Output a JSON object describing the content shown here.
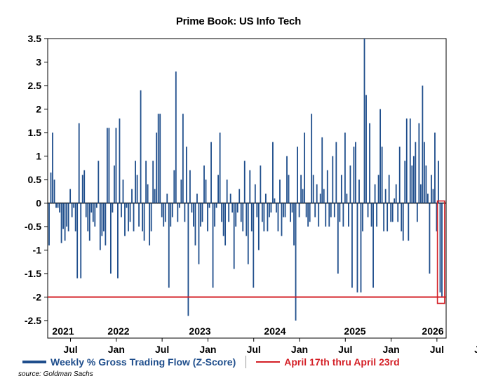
{
  "chart_data": {
    "type": "bar",
    "title": "Prime Book: US Info Tech",
    "xlabel": "",
    "ylabel": "",
    "ylim": [
      -2.75,
      3.5
    ],
    "y_ticks": [
      "3.5",
      "3",
      "2.5",
      "2",
      "1.5",
      "1",
      "0.5",
      "0",
      "-0.5",
      "-1",
      "-1.5",
      "-2",
      "-2.5"
    ],
    "x_month_ticks": [
      "Jul",
      "Jan",
      "Jul",
      "Jan",
      "Jul",
      "Jan",
      "Jul",
      "Jan",
      "Jul",
      "Jan"
    ],
    "x_year_labels": [
      "2021",
      "2022",
      "2023",
      "2024",
      "2025",
      "2026"
    ],
    "grid": false,
    "reference_line": {
      "value": -2.0,
      "name": "April 17th thru April 23rd",
      "color": "#d42027"
    },
    "highlight_last_n_weeks": 2,
    "series": [
      {
        "name": "Weekly % Gross Trading Flow (Z-Score)",
        "color": "#1f4e8c",
        "values": [
          -0.9,
          0.65,
          1.5,
          0.5,
          -0.1,
          -0.1,
          -0.2,
          -0.85,
          -0.55,
          -0.8,
          -0.5,
          -0.6,
          0.3,
          -0.3,
          -0.1,
          -0.6,
          -1.6,
          1.7,
          -1.6,
          0.6,
          0.7,
          -0.3,
          -0.6,
          -0.8,
          -0.2,
          -0.4,
          -0.5,
          -0.1,
          0.9,
          -1.0,
          -0.7,
          -0.6,
          -0.9,
          1.6,
          1.6,
          -1.5,
          -0.2,
          0.8,
          1.6,
          -1.6,
          1.8,
          -0.3,
          0.5,
          -0.7,
          -0.1,
          -0.6,
          -0.4,
          0.3,
          -0.6,
          0.9,
          0.6,
          -0.5,
          2.4,
          -0.6,
          -0.8,
          0.9,
          0.4,
          -0.9,
          -0.6,
          0.9,
          0.3,
          1.5,
          1.9,
          1.9,
          -0.3,
          -0.5,
          -0.4,
          0.2,
          -1.8,
          -0.5,
          -0.3,
          0.7,
          2.8,
          -0.4,
          -0.1,
          0.5,
          1.9,
          -0.4,
          1.2,
          -2.4,
          0.7,
          -0.2,
          -0.5,
          -0.9,
          0.2,
          -1.3,
          -0.5,
          -0.4,
          0.8,
          0.5,
          -0.6,
          -0.1,
          1.3,
          -1.8,
          -0.5,
          -0.1,
          0.6,
          1.5,
          -0.4,
          -0.7,
          -0.9,
          0.5,
          -0.4,
          0.2,
          -0.2,
          -1.4,
          -0.5,
          -0.2,
          0.3,
          -0.4,
          -0.6,
          0.9,
          -0.7,
          -1.3,
          0.7,
          -0.6,
          -1.8,
          0.4,
          -0.3,
          -1.0,
          0.8,
          -0.4,
          -0.6,
          0.2,
          -0.6,
          -0.3,
          -0.2,
          1.3,
          0.1,
          -0.2,
          -0.6,
          0.5,
          -0.7,
          -0.3,
          -0.3,
          1.0,
          0.6,
          -0.4,
          -0.2,
          -0.9,
          -2.5,
          1.2,
          -0.3,
          0.6,
          0.3,
          1.5,
          -0.3,
          -0.5,
          -0.4,
          1.9,
          0.6,
          -0.3,
          0.4,
          -0.5,
          0.2,
          1.4,
          0.3,
          -0.5,
          0.7,
          -0.5,
          -0.3,
          1.0,
          -0.3,
          1.3,
          -1.5,
          -0.4,
          0.6,
          -0.5,
          1.5,
          0.2,
          -0.5,
          0.8,
          -1.8,
          1.2,
          1.3,
          -1.9,
          0.5,
          -1.9,
          -0.6,
          3.5,
          2.3,
          -0.3,
          1.7,
          -0.5,
          -1.8,
          0.4,
          -0.5,
          0.6,
          2.0,
          1.2,
          -0.6,
          0.3,
          -0.6,
          0.6,
          -0.4,
          -0.4,
          0.1,
          0.4,
          -0.4,
          1.2,
          -0.6,
          -0.8,
          0.9,
          1.8,
          -0.8,
          1.8,
          0.8,
          1.0,
          1.3,
          -0.4,
          1.7,
          0.4,
          2.5,
          1.3,
          0.8,
          0.2,
          -1.5,
          0.6,
          0.3,
          1.5,
          -0.6,
          0.9,
          -1.9,
          -2.0
        ]
      }
    ]
  },
  "legend": {
    "series_label": "Weekly % Gross Trading Flow (Z-Score)",
    "reference_label": "April 17th thru April 23rd"
  },
  "source": "source: Goldman Sachs"
}
